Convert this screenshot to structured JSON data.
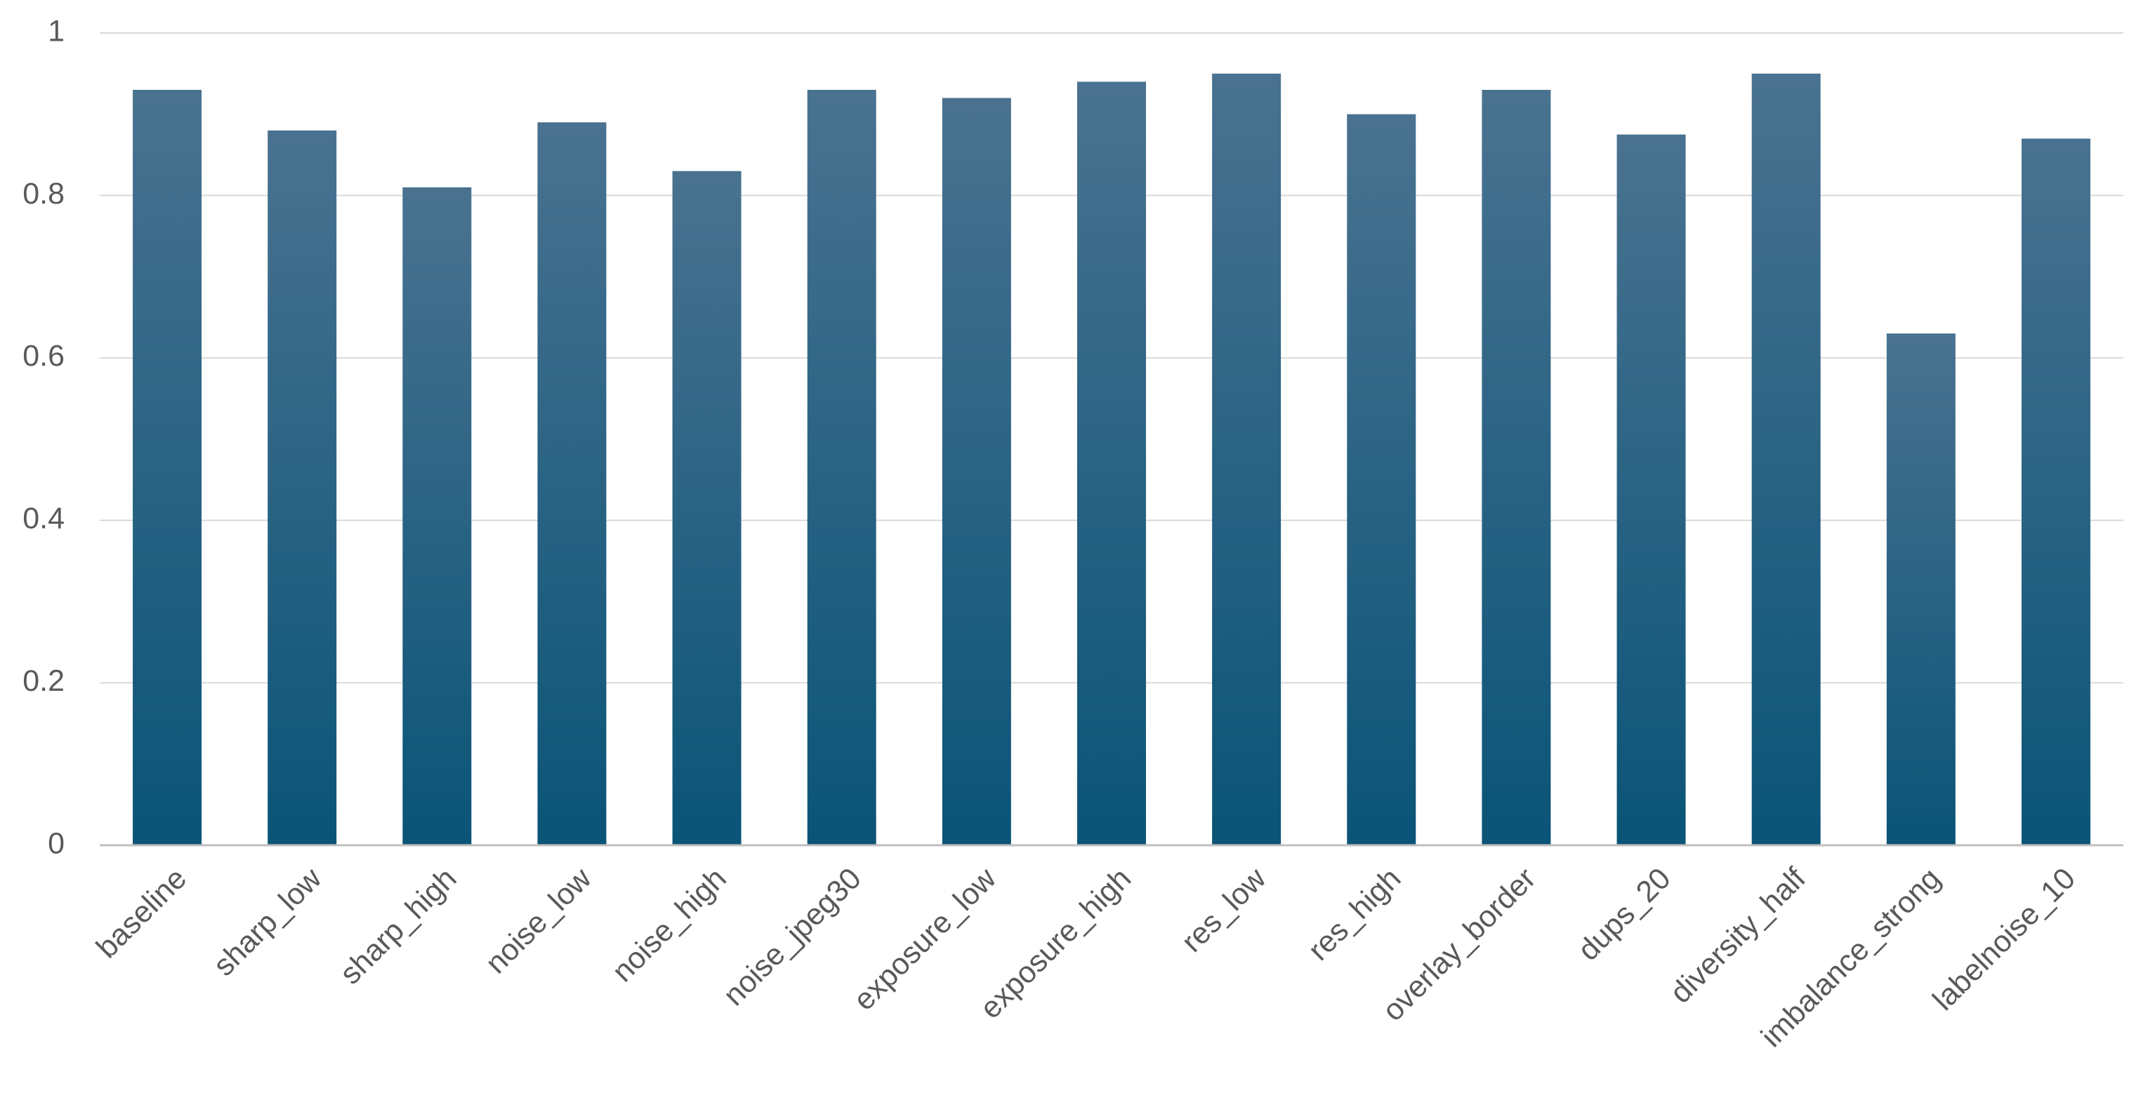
{
  "chart_data": {
    "type": "bar",
    "categories": [
      "baseline",
      "sharp_low",
      "sharp_high",
      "noise_low",
      "noise_high",
      "noise_jpeg30",
      "exposure_low",
      "exposure_high",
      "res_low",
      "res_high",
      "overlay_border",
      "dups_20",
      "diversity_half",
      "imbalance_strong",
      "labelnoise_10"
    ],
    "values": [
      0.93,
      0.88,
      0.81,
      0.89,
      0.83,
      0.93,
      0.92,
      0.94,
      0.95,
      0.9,
      0.93,
      0.875,
      0.95,
      0.63,
      0.87
    ],
    "gradient_colors": [
      "#4a7290",
      "#0a5477"
    ],
    "ylim": [
      0,
      1
    ],
    "yticks": [
      0,
      0.2,
      0.4,
      0.6,
      0.8,
      1
    ],
    "grid": true
  }
}
